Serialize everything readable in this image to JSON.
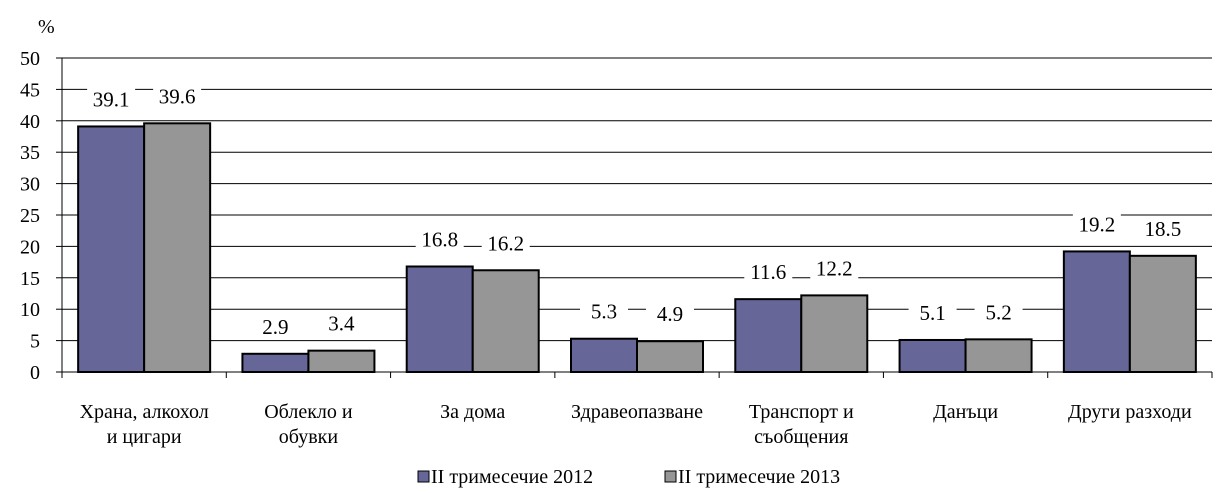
{
  "chart_data": {
    "type": "bar",
    "ylabel": "%",
    "ylim": [
      0,
      50
    ],
    "yticks": [
      0,
      5,
      10,
      15,
      20,
      25,
      30,
      35,
      40,
      45,
      50
    ],
    "grid": true,
    "legend_position": "bottom",
    "categories": [
      [
        "Храна, алкохол",
        "и цигари"
      ],
      [
        "Облекло и",
        "обувки"
      ],
      [
        "За дома"
      ],
      [
        "Здравеопазване"
      ],
      [
        "Транспорт и",
        "съобщения"
      ],
      [
        "Данъци"
      ],
      [
        "Други разходи"
      ]
    ],
    "series": [
      {
        "name": "II  тримесечие 2012",
        "color": "#666699",
        "values": [
          39.1,
          2.9,
          16.8,
          5.3,
          11.6,
          5.1,
          19.2
        ]
      },
      {
        "name": "II  тримесечие 2013",
        "color": "#969696",
        "values": [
          39.6,
          3.4,
          16.2,
          4.9,
          12.2,
          5.2,
          18.5
        ]
      }
    ]
  }
}
